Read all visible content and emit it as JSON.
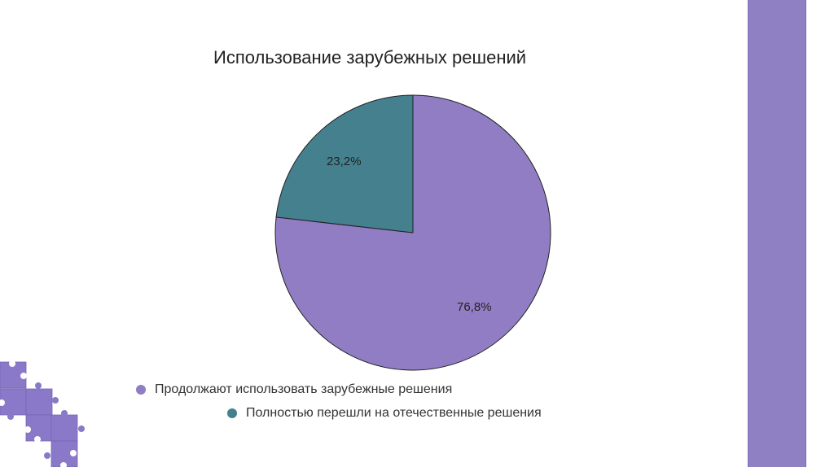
{
  "chart_data": {
    "type": "pie",
    "title": "Использование зарубежных решений",
    "slices": [
      {
        "label": "Продолжают использовать зарубежные решения",
        "value": 76.8,
        "data_label": "76,8%",
        "color": "#917dc4"
      },
      {
        "label": "Полностью перешли на отечественные решения",
        "value": 23.2,
        "data_label": "23,2%",
        "color": "#45808f"
      }
    ],
    "legend_position": "bottom"
  },
  "colors": {
    "sidebar": "#8f7fc3",
    "puzzle": "#8a78c8"
  }
}
